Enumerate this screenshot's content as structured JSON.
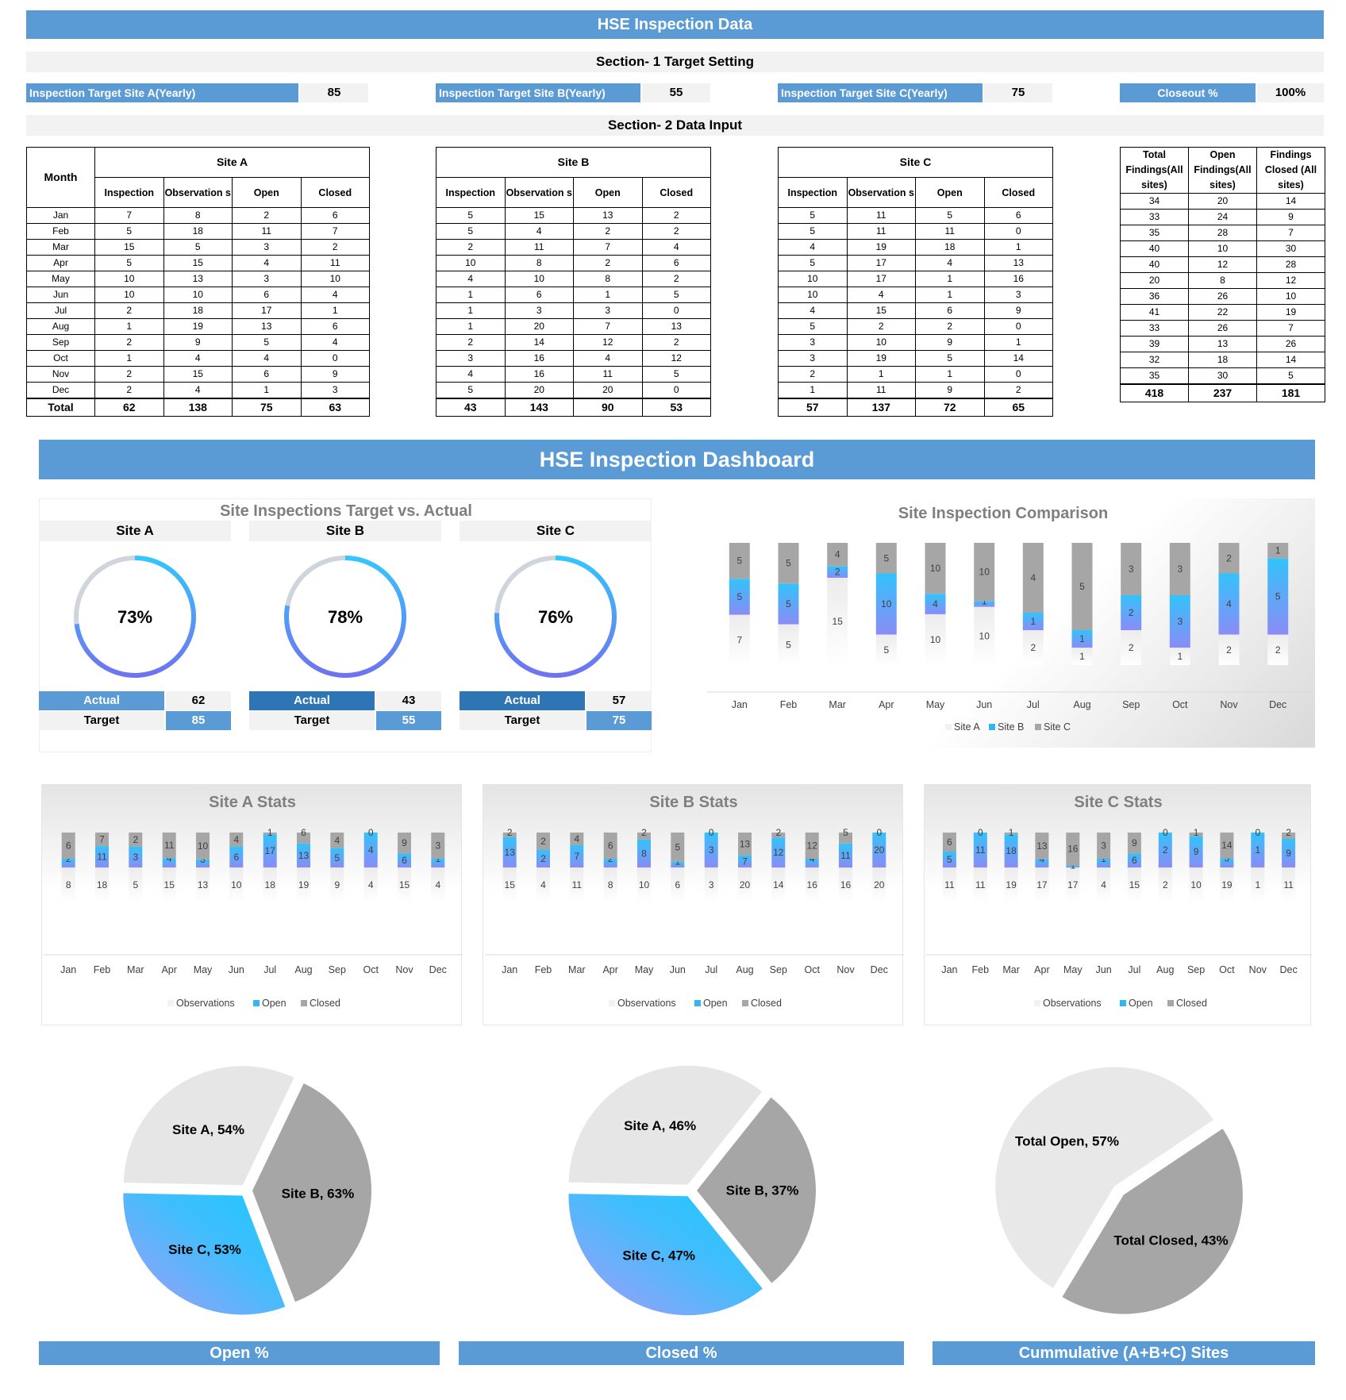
{
  "title": "HSE Inspection Data",
  "section1": "Section- 1 Target Setting",
  "section2": "Section- 2 Data Input",
  "targets": [
    {
      "label": "Inspection Target Site A(Yearly)",
      "value": "85"
    },
    {
      "label": "Inspection Target Site B(Yearly)",
      "value": "55"
    },
    {
      "label": "Inspection Target Site C(Yearly)",
      "value": "75"
    },
    {
      "label": "Closeout %",
      "value": "100%"
    }
  ],
  "table": {
    "month_header": "Month",
    "site_headers": [
      "Site A",
      "Site B",
      "Site C"
    ],
    "col_headers": [
      "Inspection",
      "Observation s",
      "Open",
      "Closed"
    ],
    "total_headers": [
      "Total Findings(All sites)",
      "Open Findings(All sites)",
      "Findings Closed (All sites)"
    ],
    "months": [
      "Jan",
      "Feb",
      "Mar",
      "Apr",
      "May",
      "Jun",
      "Jul",
      "Aug",
      "Sep",
      "Oct",
      "Nov",
      "Dec"
    ],
    "total_label": "Total",
    "siteA": [
      [
        7,
        8,
        2,
        6
      ],
      [
        5,
        18,
        11,
        7
      ],
      [
        15,
        5,
        3,
        2
      ],
      [
        5,
        15,
        4,
        11
      ],
      [
        10,
        13,
        3,
        10
      ],
      [
        10,
        10,
        6,
        4
      ],
      [
        2,
        18,
        17,
        1
      ],
      [
        1,
        19,
        13,
        6
      ],
      [
        2,
        9,
        5,
        4
      ],
      [
        1,
        4,
        4,
        0
      ],
      [
        2,
        15,
        6,
        9
      ],
      [
        2,
        4,
        1,
        3
      ]
    ],
    "siteB": [
      [
        5,
        15,
        13,
        2
      ],
      [
        5,
        4,
        2,
        2
      ],
      [
        2,
        11,
        7,
        4
      ],
      [
        10,
        8,
        2,
        6
      ],
      [
        4,
        10,
        8,
        2
      ],
      [
        1,
        6,
        1,
        5
      ],
      [
        1,
        3,
        3,
        0
      ],
      [
        1,
        20,
        7,
        13
      ],
      [
        2,
        14,
        12,
        2
      ],
      [
        3,
        16,
        4,
        12
      ],
      [
        4,
        16,
        11,
        5
      ],
      [
        5,
        20,
        20,
        0
      ]
    ],
    "siteC": [
      [
        5,
        11,
        5,
        6
      ],
      [
        5,
        11,
        11,
        0
      ],
      [
        4,
        19,
        18,
        1
      ],
      [
        5,
        17,
        4,
        13
      ],
      [
        10,
        17,
        1,
        16
      ],
      [
        10,
        4,
        1,
        3
      ],
      [
        4,
        15,
        6,
        9
      ],
      [
        5,
        2,
        2,
        0
      ],
      [
        3,
        10,
        9,
        1
      ],
      [
        3,
        19,
        5,
        14
      ],
      [
        2,
        1,
        1,
        0
      ],
      [
        1,
        11,
        9,
        2
      ]
    ],
    "totals_by_month": [
      [
        34,
        20,
        14
      ],
      [
        33,
        24,
        9
      ],
      [
        35,
        28,
        7
      ],
      [
        40,
        10,
        30
      ],
      [
        40,
        12,
        28
      ],
      [
        20,
        8,
        12
      ],
      [
        36,
        26,
        10
      ],
      [
        41,
        22,
        19
      ],
      [
        33,
        26,
        7
      ],
      [
        39,
        13,
        26
      ],
      [
        32,
        18,
        14
      ],
      [
        35,
        30,
        5
      ]
    ],
    "siteA_total": [
      62,
      138,
      75,
      63
    ],
    "siteB_total": [
      43,
      143,
      90,
      53
    ],
    "siteC_total": [
      57,
      137,
      72,
      65
    ],
    "grand_total": [
      418,
      237,
      181
    ]
  },
  "dashboard_title": "HSE Inspection Dashboard",
  "gauges": {
    "title": "Site Inspections Target vs. Actual",
    "actual_label": "Actual",
    "target_label": "Target",
    "items": [
      {
        "site": "Site A",
        "pct_label": "73%",
        "pct": 0.73,
        "actual": "62",
        "target": "85"
      },
      {
        "site": "Site B",
        "pct_label": "78%",
        "pct": 0.78,
        "actual": "43",
        "target": "55"
      },
      {
        "site": "Site C",
        "pct_label": "76%",
        "pct": 0.76,
        "actual": "57",
        "target": "75"
      }
    ]
  },
  "colors": {
    "accent": "#5b9bd5",
    "dark_accent": "#2e75b6",
    "open": "#33b5f0",
    "closed": "#a6a6a6",
    "observations": "#f2f2f2",
    "gauge_track": "#d0d4dc",
    "gauge_start": "#33c6ff",
    "gauge_end": "#6f73f0"
  },
  "chart_data": [
    {
      "type": "bar",
      "stacked": true,
      "title": "Site Inspection Comparison",
      "categories": [
        "Jan",
        "Feb",
        "Mar",
        "Apr",
        "May",
        "Jun",
        "Jul",
        "Aug",
        "Sep",
        "Oct",
        "Nov",
        "Dec"
      ],
      "series": [
        {
          "name": "Site A",
          "values": [
            7,
            5,
            15,
            5,
            10,
            10,
            2,
            1,
            2,
            1,
            2,
            2
          ]
        },
        {
          "name": "Site B",
          "values": [
            5,
            5,
            2,
            10,
            4,
            1,
            1,
            1,
            2,
            3,
            4,
            5
          ]
        },
        {
          "name": "Site C",
          "values": [
            5,
            5,
            4,
            5,
            10,
            10,
            4,
            5,
            3,
            3,
            2,
            1
          ]
        }
      ],
      "legend": "bottom"
    },
    {
      "type": "bar",
      "stacked": true,
      "title": "Site A Stats",
      "categories": [
        "Jan",
        "Feb",
        "Mar",
        "Apr",
        "May",
        "Jun",
        "Jul",
        "Aug",
        "Sep",
        "Oct",
        "Nov",
        "Dec"
      ],
      "series": [
        {
          "name": "Observations",
          "values": [
            8,
            18,
            5,
            15,
            13,
            10,
            18,
            19,
            9,
            4,
            15,
            4
          ]
        },
        {
          "name": "Open",
          "values": [
            2,
            11,
            3,
            4,
            3,
            6,
            17,
            13,
            5,
            4,
            6,
            1
          ]
        },
        {
          "name": "Closed",
          "values": [
            6,
            7,
            2,
            11,
            10,
            4,
            1,
            6,
            4,
            0,
            9,
            3
          ]
        }
      ],
      "legend": "bottom"
    },
    {
      "type": "bar",
      "stacked": true,
      "title": "Site B Stats",
      "categories": [
        "Jan",
        "Feb",
        "Mar",
        "Apr",
        "May",
        "Jun",
        "Jul",
        "Aug",
        "Sep",
        "Oct",
        "Nov",
        "Dec"
      ],
      "series": [
        {
          "name": "Observations",
          "values": [
            15,
            4,
            11,
            8,
            10,
            6,
            3,
            20,
            14,
            16,
            16,
            20
          ]
        },
        {
          "name": "Open",
          "values": [
            13,
            2,
            7,
            2,
            8,
            1,
            3,
            7,
            12,
            4,
            11,
            20
          ]
        },
        {
          "name": "Closed",
          "values": [
            2,
            2,
            4,
            6,
            2,
            5,
            0,
            13,
            2,
            12,
            5,
            0
          ]
        }
      ],
      "legend": "bottom"
    },
    {
      "type": "bar",
      "stacked": true,
      "title": "Site C Stats",
      "categories": [
        "Jan",
        "Feb",
        "Mar",
        "Apr",
        "May",
        "Jun",
        "Jul",
        "Aug",
        "Sep",
        "Oct",
        "Nov",
        "Dec"
      ],
      "series": [
        {
          "name": "Observations",
          "values": [
            11,
            11,
            19,
            17,
            17,
            4,
            15,
            2,
            10,
            19,
            1,
            11
          ]
        },
        {
          "name": "Open",
          "values": [
            5,
            11,
            18,
            4,
            1,
            1,
            6,
            2,
            9,
            5,
            1,
            9
          ]
        },
        {
          "name": "Closed",
          "values": [
            6,
            0,
            1,
            13,
            16,
            3,
            9,
            0,
            1,
            14,
            0,
            2
          ]
        }
      ],
      "legend": "bottom"
    },
    {
      "type": "pie",
      "title": "Open %",
      "slices": [
        {
          "label": "Site A, 54%",
          "value": 54
        },
        {
          "label": "Site B, 63%",
          "value": 63
        },
        {
          "label": "Site C, 53%",
          "value": 53
        }
      ]
    },
    {
      "type": "pie",
      "title": "Closed %",
      "slices": [
        {
          "label": "Site A, 46%",
          "value": 46
        },
        {
          "label": "Site B, 37%",
          "value": 37
        },
        {
          "label": "Site C, 47%",
          "value": 47
        }
      ]
    },
    {
      "type": "pie",
      "title": "Cummulative (A+B+C) Sites",
      "slices": [
        {
          "label": "Total Open, 57%",
          "value": 57
        },
        {
          "label": "Total Closed, 43%",
          "value": 43
        }
      ]
    }
  ]
}
